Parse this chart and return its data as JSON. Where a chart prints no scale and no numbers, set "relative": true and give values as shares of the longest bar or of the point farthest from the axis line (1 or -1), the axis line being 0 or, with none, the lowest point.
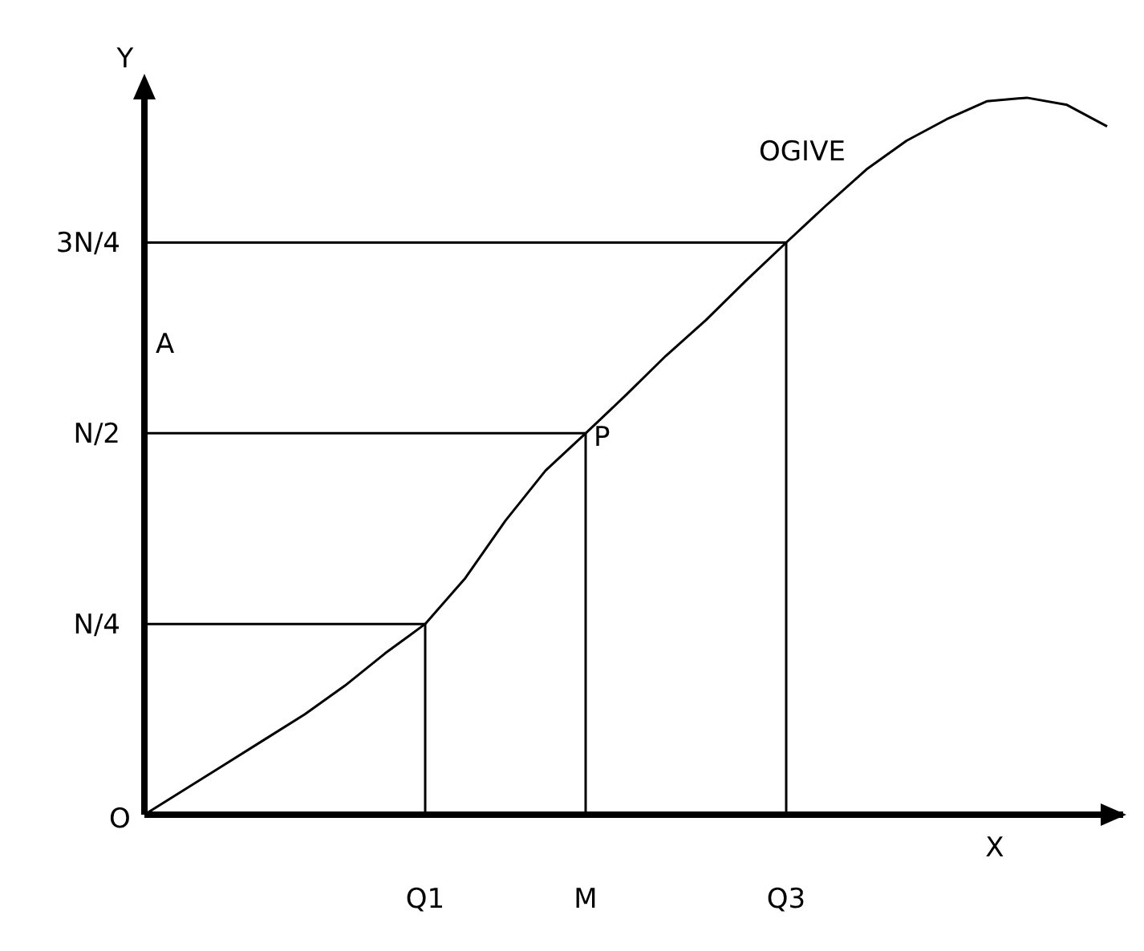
{
  "chart_data": {
    "type": "line",
    "xlabel": "X",
    "ylabel": "Y",
    "relative": true,
    "categories": [
      null,
      null,
      null,
      null,
      null,
      null,
      null,
      "Q1",
      null,
      null,
      null,
      "M",
      null,
      null,
      null,
      null,
      "Q3",
      null,
      null,
      null,
      null,
      null,
      null,
      null,
      null
    ],
    "series": [
      {
        "color": "#000000",
        "values": [
          0,
          0.035,
          0.07,
          0.105,
          0.14,
          0.18,
          0.225,
          0.266,
          0.33,
          0.41,
          0.48,
          0.532,
          0.585,
          0.64,
          0.69,
          0.745,
          0.798,
          0.85,
          0.9,
          0.94,
          0.97,
          0.995,
          1,
          0.99,
          0.96
        ]
      }
    ],
    "ref_lines": [
      {
        "axis": "y",
        "value": 0.266,
        "label": "N/4",
        "color": "#000000"
      },
      {
        "axis": "y",
        "value": 0.532,
        "label": "N/2",
        "color": "#000000"
      },
      {
        "axis": "y",
        "value": 0.798,
        "label": "3N/4",
        "color": "#000000"
      },
      {
        "axis": "x",
        "value": "Q1",
        "color": "#000000"
      },
      {
        "axis": "x",
        "value": "M",
        "color": "#000000"
      },
      {
        "axis": "x",
        "value": "Q3",
        "color": "#000000"
      }
    ],
    "annotations": [
      "OGIVE",
      "P",
      "O",
      "A"
    ],
    "marker": "none",
    "line_style": "solid"
  }
}
